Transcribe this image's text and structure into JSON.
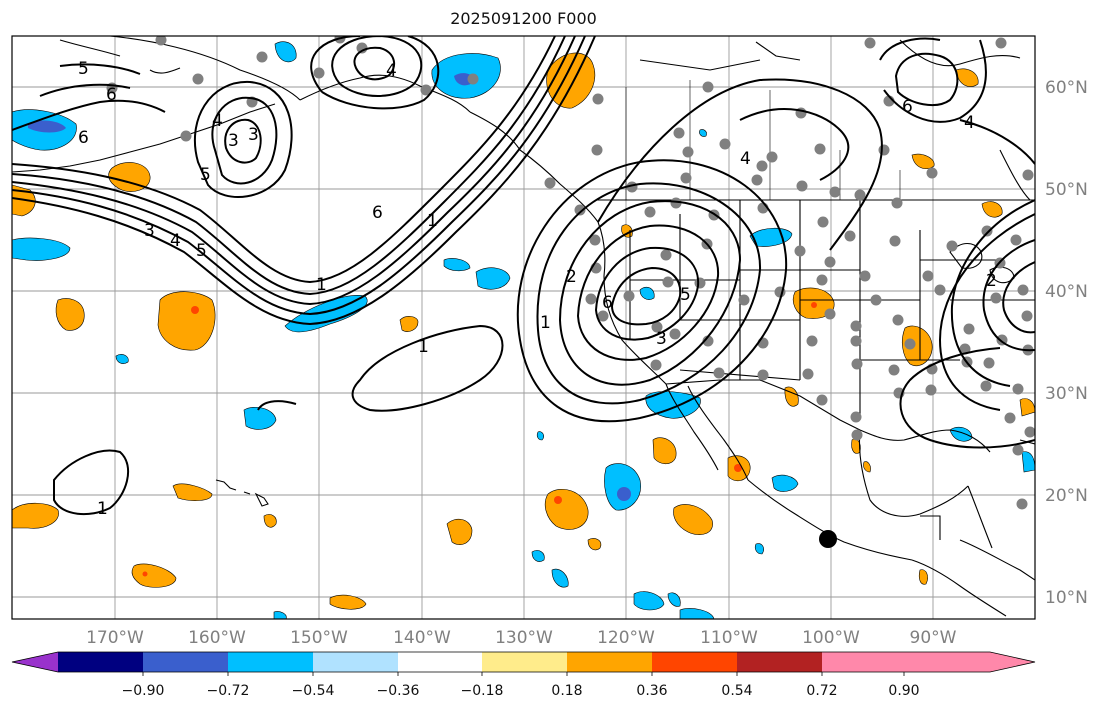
{
  "title": "2025091200 F000",
  "latitude_labels": [
    "60°N",
    "50°N",
    "40°N",
    "30°N",
    "20°N",
    "10°N"
  ],
  "longitude_labels": [
    "170°W",
    "160°W",
    "150°W",
    "140°W",
    "130°W",
    "120°W",
    "110°W",
    "100°W",
    "90°W"
  ],
  "colorbar": {
    "colors": [
      "#9932cc",
      "#000080",
      "#3a5fcd",
      "#00bfff",
      "#b0e2ff",
      "#ffffff",
      "#ffec8b",
      "#ffa500",
      "#ff4500",
      "#b22222",
      "#ff88aa"
    ],
    "tick_labels": [
      "−0.90",
      "−0.72",
      "−0.54",
      "−0.36",
      "−0.18",
      "0.18",
      "0.36",
      "0.54",
      "0.72",
      "0.90"
    ]
  },
  "contour_labels": [
    "5",
    "6",
    "6",
    "3",
    "4",
    "5",
    "3",
    "3",
    "4",
    "5",
    "6",
    "1",
    "1",
    "1",
    "1",
    "1",
    "2",
    "3",
    "6",
    "4",
    "5",
    "4",
    "6",
    "4",
    "2"
  ],
  "map_colors": {
    "land_outline": "#000000",
    "grid": "#9a9a9a",
    "station_dot": "#808080",
    "warm": "#ffa500",
    "warm_core": "#ff4500",
    "cool": "#00bfff",
    "cool_core": "#3a5fcd"
  }
}
